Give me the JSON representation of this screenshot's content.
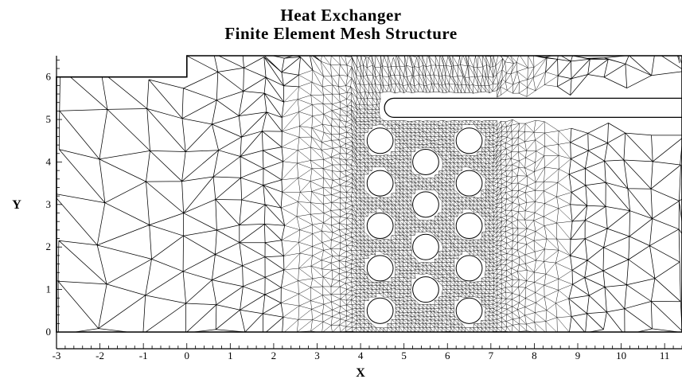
{
  "title": "Heat Exchanger",
  "subtitle": "Finite Element Mesh Structure",
  "chart_data": {
    "type": "mesh",
    "xlabel": "X",
    "ylabel": "Y",
    "xlim": [
      -3,
      11.4
    ],
    "ylim": [
      -0.15,
      6.5
    ],
    "x_ticks": [
      "-3",
      "-2",
      "-1",
      "0",
      "1",
      "2",
      "3",
      "4",
      "5",
      "6",
      "7",
      "8",
      "9",
      "10",
      "11"
    ],
    "y_ticks": [
      "0",
      "1",
      "2",
      "3",
      "4",
      "5",
      "6"
    ],
    "domain_outline": [
      [
        -3,
        0
      ],
      [
        11.4,
        0
      ],
      [
        11.4,
        6.5
      ],
      [
        0,
        6.5
      ],
      [
        0,
        6
      ],
      [
        -3,
        6
      ]
    ],
    "plate": {
      "x_start": 4.55,
      "x_end": 11.4,
      "y_low": 5.05,
      "y_high": 5.5
    },
    "tubes": {
      "radius": 0.3,
      "centers": [
        [
          4.45,
          0.5
        ],
        [
          4.45,
          1.5
        ],
        [
          4.45,
          2.5
        ],
        [
          4.45,
          3.5
        ],
        [
          4.45,
          4.5
        ],
        [
          5.5,
          1.0
        ],
        [
          5.5,
          2.0
        ],
        [
          5.5,
          3.0
        ],
        [
          5.5,
          4.0
        ],
        [
          6.5,
          0.5
        ],
        [
          6.5,
          1.5
        ],
        [
          6.5,
          2.5
        ],
        [
          6.5,
          3.5
        ],
        [
          6.5,
          4.5
        ]
      ]
    },
    "grid": false
  }
}
